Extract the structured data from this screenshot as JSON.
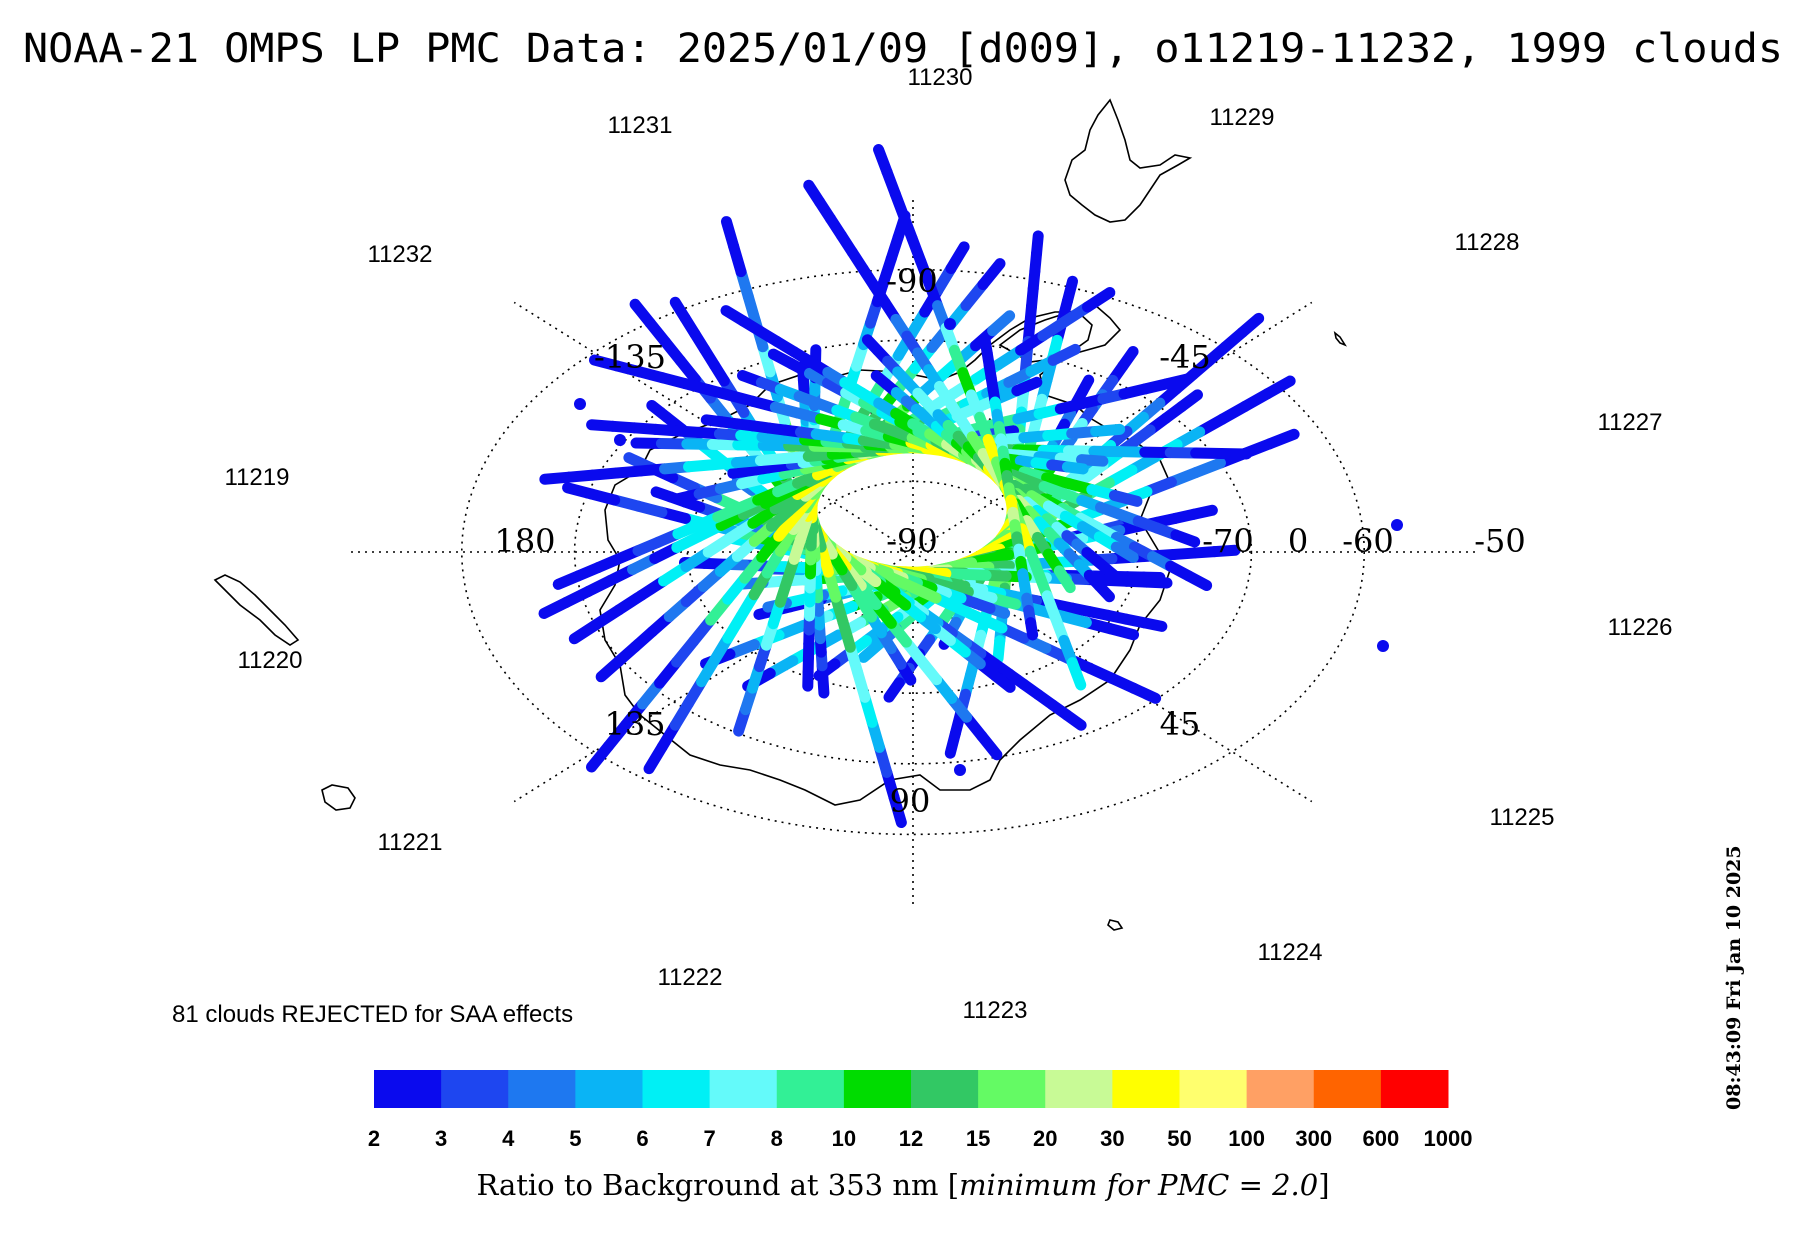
{
  "title": "NOAA-21 OMPS LP PMC Data: 2025/01/09 [d009], o11219-11232, 1999 clouds",
  "timestamp": "08:43:09 Fri Jan 10 2025",
  "rejected_note": "81 clouds REJECTED for SAA effects",
  "colorbar": {
    "title_prefix": "Ratio to Background at 353 nm [",
    "title_italic": "minimum for PMC = 2.0",
    "title_suffix": "]",
    "ticks": [
      "2",
      "3",
      "4",
      "5",
      "6",
      "7",
      "8",
      "10",
      "12",
      "15",
      "20",
      "30",
      "50",
      "100",
      "300",
      "600",
      "1000"
    ],
    "colors": [
      "#0a0aee",
      "#1e46f0",
      "#1e78f0",
      "#0ab4f5",
      "#00f0f5",
      "#64fafa",
      "#32f096",
      "#00dc00",
      "#32c864",
      "#64fa64",
      "#c8fa96",
      "#ffff00",
      "#ffff6e",
      "#ffa064",
      "#ff6400",
      "#ff0000"
    ]
  },
  "map": {
    "projection": "polar-stereographic-south",
    "grid_latitudes": [
      -90,
      -80,
      -70,
      -60,
      -50
    ],
    "grid_longitudes_deg": [
      0,
      45,
      90,
      135,
      180,
      -45,
      -90,
      -135
    ],
    "labels": {
      "lon": [
        {
          "key": "lon_m90_top",
          "text": "-90"
        },
        {
          "key": "lon_m135",
          "text": "-135"
        },
        {
          "key": "lon_m45",
          "text": "-45"
        },
        {
          "key": "lon_180",
          "text": "180"
        },
        {
          "key": "lon_135",
          "text": "135"
        },
        {
          "key": "lon_45",
          "text": "45"
        },
        {
          "key": "lon_90",
          "text": "90"
        }
      ],
      "lat": [
        "-90",
        "-70",
        "0",
        "-60",
        "-50"
      ]
    },
    "orbits": [
      "11219",
      "11220",
      "11221",
      "11222",
      "11223",
      "11224",
      "11225",
      "11226",
      "11227",
      "11228",
      "11229",
      "11230",
      "11231",
      "11232"
    ]
  }
}
